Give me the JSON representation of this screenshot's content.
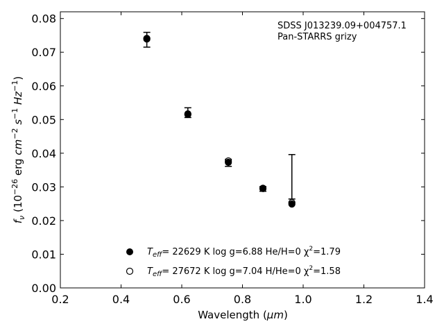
{
  "chart_data": {
    "type": "scatter",
    "xlabel": "Wavelength (μm)",
    "ylabel": "f_ν (10^-26 erg cm^-2 s^-1 Hz^-1)",
    "xlim": [
      0.2,
      1.4
    ],
    "ylim": [
      0.0,
      0.082
    ],
    "x_ticks": [
      "0.2",
      "0.4",
      "0.6",
      "0.8",
      "1.0",
      "1.2",
      "1.4"
    ],
    "y_ticks": [
      "0.00",
      "0.01",
      "0.02",
      "0.03",
      "0.04",
      "0.05",
      "0.06",
      "0.07",
      "0.08"
    ],
    "grid": false,
    "annotations": [
      "SDSS J013239.09+004757.1",
      "Pan-STARRS grizy"
    ],
    "observed": {
      "x": [
        0.4849,
        0.6201,
        0.7535,
        0.8674,
        0.9628
      ],
      "y": [
        0.0738,
        0.0518,
        0.0375,
        0.0296,
        0.033
      ],
      "yerr_low": [
        0.0023,
        0.0012,
        0.0014,
        0.0009,
        0.0066
      ],
      "yerr_high": [
        0.0021,
        0.0017,
        0.0007,
        0.0005,
        0.0066
      ],
      "markers": [
        "none",
        "none",
        "none",
        "none",
        "none"
      ]
    },
    "series": [
      {
        "name": "T_eff= 22629 K  log g=6.88  He/H=0  χ²=1.79",
        "marker": "filled-circle",
        "x": [
          0.4849,
          0.6201,
          0.7535,
          0.8674,
          0.9628
        ],
        "y": [
          0.0739,
          0.0515,
          0.0373,
          0.0295,
          0.0249
        ]
      },
      {
        "name": "T_eff= 27672 K  log g=7.04  H/He=0  χ²=1.58",
        "marker": "open-circle",
        "x": [
          0.4849,
          0.6201,
          0.7535,
          0.8674,
          0.9628
        ],
        "y": [
          0.0741,
          0.0517,
          0.0377,
          0.0296,
          0.0253
        ]
      }
    ],
    "legend_placement": "lower-center"
  },
  "legend": {
    "entry1": {
      "teff_main": "T",
      "teff_sub": "eff",
      "rest": "= 22629 K  log g=6.88  He/H=0  χ",
      "sup": "2",
      "tail": "=1.79"
    },
    "entry2": {
      "teff_main": "T",
      "teff_sub": "eff",
      "rest": "= 27672 K  log g=7.04  H/He=0  χ",
      "sup": "2",
      "tail": "=1.58"
    }
  },
  "ylabel_parts": {
    "f": "f",
    "nu": "ν",
    "open": " (10",
    "exp1": "−26",
    "erg": " erg ",
    "cm": "cm",
    "exp2": "−2",
    "s": " s",
    "exp3": "−1",
    "hz": " Hz",
    "exp4": "−1",
    "close": ")"
  },
  "xlabel_parts": {
    "pre": "Wavelength (",
    "mu": "μm",
    "post": ")"
  }
}
